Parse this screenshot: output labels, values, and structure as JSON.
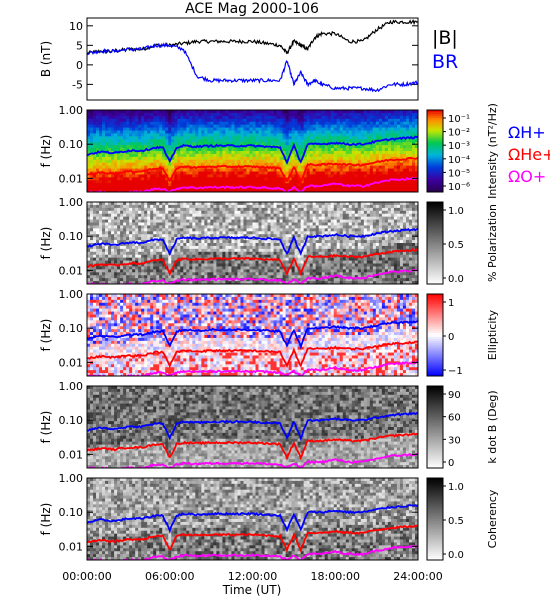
{
  "figure": {
    "title": "ACE Mag 2000-106",
    "x_axis_label": "Time (UT)",
    "x_ticks": [
      "00:00:00",
      "06:00:00",
      "12:00:00",
      "18:00:00",
      "24:00:00"
    ]
  },
  "chart_data": [
    {
      "type": "line",
      "panel": "B",
      "ylabel": "B (nT)",
      "ylim": [
        -9,
        12
      ],
      "yticks": [
        10,
        5,
        0,
        -5
      ],
      "x_range_hours": [
        0,
        24
      ],
      "series": [
        {
          "name": "|B|",
          "color": "#000000",
          "x": [
            0,
            1,
            2,
            3,
            4,
            5,
            6,
            7,
            8,
            9,
            10,
            11,
            12,
            13,
            14,
            14.5,
            15,
            15.5,
            16,
            16.5,
            17,
            18,
            19,
            20,
            21,
            22,
            23,
            24
          ],
          "y": [
            3,
            3.5,
            3.5,
            4,
            4,
            5,
            5,
            5.5,
            6,
            6,
            6,
            6,
            6,
            5.5,
            5,
            3,
            6,
            5,
            4,
            7,
            8,
            8,
            6,
            6,
            9,
            11,
            11,
            11
          ]
        },
        {
          "name": "BR",
          "color": "#0000ff",
          "x": [
            0,
            1,
            2,
            3,
            4,
            5,
            6,
            7,
            8,
            9,
            10,
            11,
            12,
            13,
            14,
            14.5,
            15,
            15.5,
            16,
            16.5,
            17,
            18,
            19,
            20,
            21,
            22,
            23,
            24
          ],
          "y": [
            3,
            3.5,
            3.5,
            4,
            4,
            5,
            5,
            4,
            -3,
            -4,
            -4,
            -4,
            -4,
            -4,
            -4,
            1,
            -5,
            -2,
            -5,
            -4,
            -5,
            -6,
            -6,
            -6,
            -6.5,
            -5,
            -5,
            -4.5
          ]
        }
      ]
    },
    {
      "type": "heatmap",
      "panel": "spectrogram",
      "ylabel": "f (Hz)",
      "yscale": "log",
      "ylim": [
        0.004,
        1.0
      ],
      "yticks": [
        "1.00",
        "0.10",
        "0.01"
      ],
      "colorbar": {
        "label": "Intensity (nT²/Hz)",
        "ticks": [
          "10⁻¹",
          "10⁻²",
          "10⁻³",
          "10⁻⁴",
          "10⁻⁵",
          "10⁻⁶"
        ],
        "colormap": "rainbow"
      },
      "legend": [
        "ΩH+",
        "ΩHe+",
        "ΩO+"
      ]
    },
    {
      "type": "heatmap",
      "panel": "polarization",
      "ylabel": "f (Hz)",
      "yscale": "log",
      "ylim": [
        0.004,
        1.0
      ],
      "yticks": [
        "1.00",
        "0.10",
        "0.01"
      ],
      "colorbar": {
        "label": "% Polarization",
        "ticks": [
          "1.0",
          "0.5",
          "0.0"
        ],
        "colormap": "gray"
      }
    },
    {
      "type": "heatmap",
      "panel": "ellipticity",
      "ylabel": "f (Hz)",
      "yscale": "log",
      "ylim": [
        0.004,
        1.0
      ],
      "yticks": [
        "1.00",
        "0.10",
        "0.01"
      ],
      "colorbar": {
        "label": "Ellipticity",
        "ticks": [
          "1",
          "0",
          "−1"
        ],
        "colormap": "blue-white-red"
      }
    },
    {
      "type": "heatmap",
      "panel": "kdotb",
      "ylabel": "f (Hz)",
      "yscale": "log",
      "ylim": [
        0.004,
        1.0
      ],
      "yticks": [
        "1.00",
        "0.10",
        "0.01"
      ],
      "colorbar": {
        "label": "k dot B (Deg)",
        "ticks": [
          "90",
          "60",
          "30",
          "0"
        ],
        "colormap": "gray"
      }
    },
    {
      "type": "heatmap",
      "panel": "coherency",
      "ylabel": "f (Hz)",
      "yscale": "log",
      "ylim": [
        0.004,
        1.0
      ],
      "yticks": [
        "1.00",
        "0.10",
        "0.01"
      ],
      "colorbar": {
        "label": "Coherency",
        "ticks": [
          "1.0",
          "0.5",
          "0.0"
        ],
        "colormap": "gray"
      }
    }
  ],
  "gyrofrequency_lines": {
    "x_hours": [
      0,
      1,
      2,
      3,
      4,
      5,
      5.5,
      6,
      6.5,
      7,
      8,
      9,
      10,
      11,
      12,
      13,
      14,
      14.5,
      15,
      15.5,
      16,
      17,
      18,
      19,
      20,
      21,
      22,
      23,
      24
    ],
    "H": [
      0.05,
      0.06,
      0.055,
      0.065,
      0.065,
      0.08,
      0.08,
      0.03,
      0.08,
      0.09,
      0.085,
      0.09,
      0.09,
      0.09,
      0.09,
      0.085,
      0.08,
      0.03,
      0.09,
      0.03,
      0.1,
      0.1,
      0.11,
      0.1,
      0.1,
      0.12,
      0.14,
      0.15,
      0.16
    ],
    "He": [
      0.013,
      0.015,
      0.014,
      0.016,
      0.016,
      0.02,
      0.02,
      0.008,
      0.02,
      0.022,
      0.021,
      0.022,
      0.022,
      0.022,
      0.022,
      0.021,
      0.02,
      0.008,
      0.022,
      0.008,
      0.025,
      0.025,
      0.027,
      0.025,
      0.025,
      0.03,
      0.035,
      0.037,
      0.04
    ],
    "O": [
      0.004,
      0.004,
      0.0037,
      0.004,
      0.004,
      0.005,
      0.005,
      0.004,
      0.005,
      0.0055,
      0.0053,
      0.0055,
      0.0055,
      0.0055,
      0.0055,
      0.0053,
      0.005,
      0.004,
      0.0055,
      0.004,
      0.006,
      0.006,
      0.007,
      0.006,
      0.006,
      0.0075,
      0.009,
      0.0095,
      0.01
    ]
  },
  "colors": {
    "H": "#0000ff",
    "He": "#ff0000",
    "O": "#ff00ff",
    "absB": "#000000",
    "BR": "#0000ff"
  }
}
